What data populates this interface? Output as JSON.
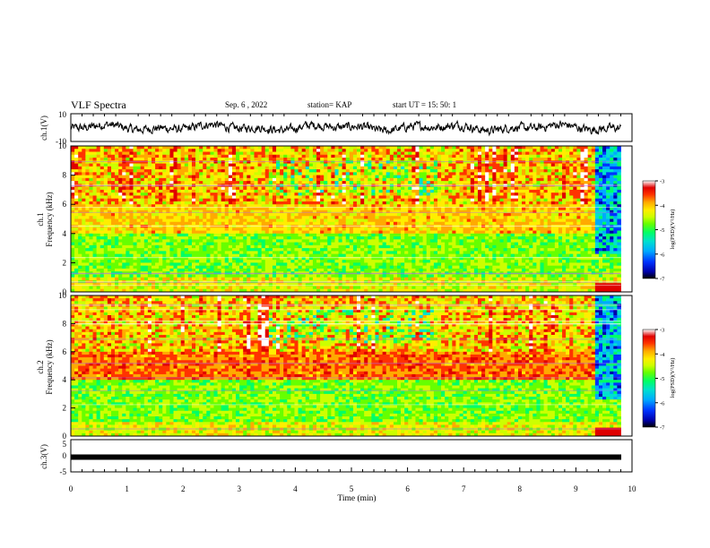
{
  "header": {
    "title": "VLF Spectra",
    "date": "Sep. 6 , 2022",
    "station": "station= KAP",
    "start": "start UT = 15: 50: 1"
  },
  "colors": {
    "colormap": [
      "#000000",
      "#0000aa",
      "#0033ff",
      "#00aaff",
      "#00e0d0",
      "#00ff66",
      "#66ff00",
      "#ccff00",
      "#ffee00",
      "#ffaa00",
      "#ff3300",
      "#e00000",
      "#ffffff"
    ],
    "trace": "#000000"
  },
  "chart_data": [
    {
      "type": "line",
      "ylabel": "ch.1(V)",
      "ylim": [
        -10,
        10
      ],
      "yticks": [
        "10",
        "-10"
      ],
      "xlim": [
        0,
        10
      ],
      "description_series": "ch.1 waveform, oscillating roughly between -5 and 5 V over 0-9.8 min"
    },
    {
      "type": "heatmap",
      "ylabel": "ch.1 Frequency (kHz)",
      "ylim": [
        0,
        10
      ],
      "yticks": [
        "0",
        "2",
        "4",
        "6",
        "8",
        "10"
      ],
      "xlim": [
        0,
        10
      ],
      "colorbar": {
        "label": "log(PSD)(V²/Hz)",
        "ticks": [
          "-3",
          "-4",
          "-5",
          "-6",
          "-7"
        ],
        "range": [
          -7,
          -3
        ]
      }
    },
    {
      "type": "heatmap",
      "ylabel": "ch.2 Frequency (kHz)",
      "ylim": [
        0,
        10
      ],
      "yticks": [
        "0",
        "2",
        "4",
        "6",
        "8",
        "10"
      ],
      "xlim": [
        0,
        10
      ],
      "colorbar": {
        "label": "log(PSD)(V²/Hz)",
        "ticks": [
          "-3",
          "-4",
          "-5",
          "-6",
          "-7"
        ],
        "range": [
          -7,
          -3
        ]
      }
    },
    {
      "type": "line",
      "ylabel": "ch.3(V)",
      "ylim": [
        -5,
        5
      ],
      "yticks": [
        "5",
        "0",
        "-5"
      ],
      "xlim": [
        0,
        10
      ],
      "xlabel": "Time (min)",
      "xticks": [
        "0",
        "1",
        "2",
        "3",
        "4",
        "5",
        "6",
        "7",
        "8",
        "9",
        "10"
      ],
      "series": [
        {
          "x": [
            0,
            9.8
          ],
          "y": [
            -1,
            -1
          ]
        }
      ]
    }
  ]
}
